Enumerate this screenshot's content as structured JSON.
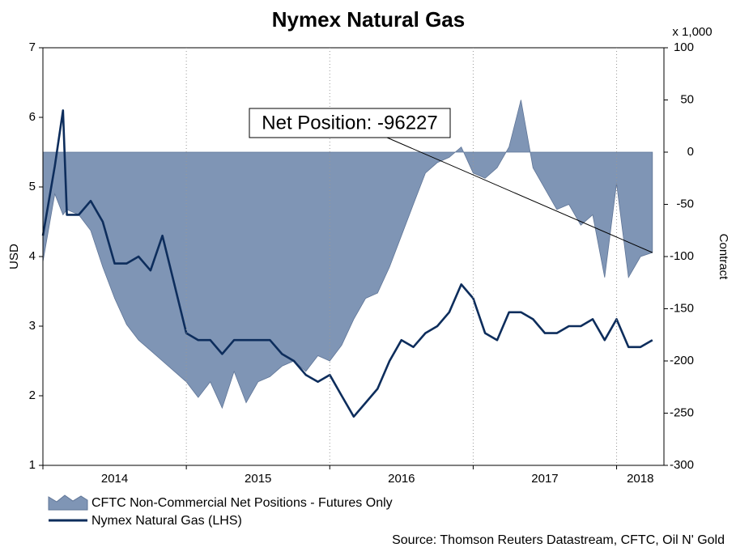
{
  "chart_data": {
    "type": "line",
    "title": "Nymex Natural Gas",
    "y_label": "USD",
    "y2_label": "Contract",
    "y2_unit": "x 1,000",
    "annotation": "Net Position: -96227",
    "source": "Source: Thomson Reuters Datastream, CFTC, Oil N' Gold",
    "x": [
      2014.0,
      2014.083,
      2014.14,
      2014.167,
      2014.25,
      2014.333,
      2014.417,
      2014.5,
      2014.583,
      2014.667,
      2014.75,
      2014.833,
      2014.917,
      2015.0,
      2015.083,
      2015.167,
      2015.25,
      2015.333,
      2015.417,
      2015.5,
      2015.583,
      2015.667,
      2015.75,
      2015.833,
      2015.917,
      2016.0,
      2016.083,
      2016.167,
      2016.25,
      2016.333,
      2016.417,
      2016.5,
      2016.583,
      2016.667,
      2016.75,
      2016.833,
      2016.917,
      2017.0,
      2017.083,
      2017.167,
      2017.25,
      2017.333,
      2017.417,
      2017.5,
      2017.583,
      2017.667,
      2017.75,
      2017.833,
      2017.917,
      2018.0,
      2018.083,
      2018.167,
      2018.25
    ],
    "xlim": [
      2014.0,
      2018.33
    ],
    "xticks": [
      2014,
      2015,
      2016,
      2017,
      2018
    ],
    "ylim": [
      1,
      7
    ],
    "yticks": [
      1,
      2,
      3,
      4,
      5,
      6,
      7
    ],
    "y2lim": [
      -300,
      100
    ],
    "y2ticks": [
      -300,
      -250,
      -200,
      -150,
      -100,
      -50,
      0,
      50,
      100
    ],
    "grid": true,
    "series": [
      {
        "name": "CFTC Non-Commercial Net Positions - Futures Only",
        "kind": "area",
        "axis": "y2",
        "color": "#7f95b5",
        "values": [
          -105,
          -40,
          -60,
          -55,
          -60,
          -75,
          -110,
          -140,
          -165,
          -180,
          -190,
          -200,
          -210,
          -220,
          -235,
          -220,
          -245,
          -210,
          -240,
          -220,
          -215,
          -205,
          -200,
          -210,
          -195,
          -200,
          -185,
          -160,
          -140,
          -135,
          -110,
          -80,
          -50,
          -20,
          -10,
          -5,
          5,
          -20,
          -25,
          -15,
          5,
          50,
          -15,
          -35,
          -55,
          -50,
          -70,
          -60,
          -120,
          -30,
          -120,
          -100,
          -96.227
        ]
      },
      {
        "name": "Nymex Natural Gas (LHS)",
        "kind": "line",
        "axis": "y",
        "color": "#0d2d5c",
        "values": [
          4.3,
          5.3,
          6.1,
          4.6,
          4.6,
          4.8,
          4.5,
          3.9,
          3.9,
          4.0,
          3.8,
          4.3,
          3.6,
          2.9,
          2.8,
          2.8,
          2.6,
          2.8,
          2.8,
          2.8,
          2.8,
          2.6,
          2.5,
          2.3,
          2.2,
          2.3,
          2.0,
          1.7,
          1.9,
          2.1,
          2.5,
          2.8,
          2.7,
          2.9,
          3.0,
          3.2,
          3.6,
          3.4,
          2.9,
          2.8,
          3.2,
          3.2,
          3.1,
          2.9,
          2.9,
          3.0,
          3.0,
          3.1,
          2.8,
          3.1,
          2.7,
          2.7,
          2.8
        ]
      }
    ]
  }
}
